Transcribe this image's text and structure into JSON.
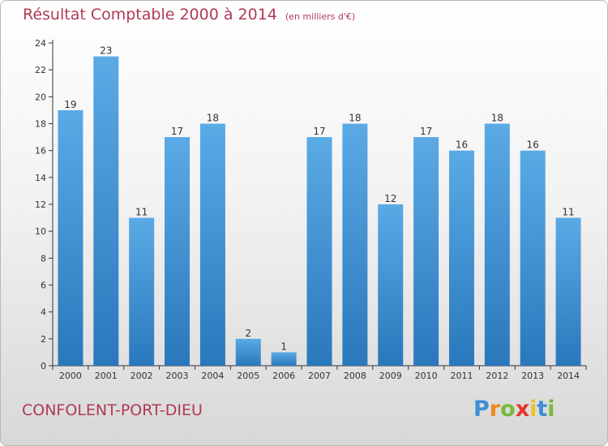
{
  "chart_data": {
    "type": "bar",
    "title": "Résultat Comptable 2000 à 2014",
    "subtitle": "(en milliers d'€)",
    "categories": [
      "2000",
      "2001",
      "2002",
      "2003",
      "2004",
      "2005",
      "2006",
      "2007",
      "2008",
      "2009",
      "2010",
      "2011",
      "2012",
      "2013",
      "2014"
    ],
    "values": [
      19,
      23,
      11,
      17,
      18,
      2,
      1,
      17,
      18,
      12,
      17,
      16,
      18,
      16,
      11
    ],
    "ylim": [
      0,
      24
    ],
    "yticks": [
      0,
      2,
      4,
      6,
      8,
      10,
      12,
      14,
      16,
      18,
      20,
      22,
      24
    ],
    "grid": false,
    "bar_colors": [
      "#5aaae6",
      "#2a78bc"
    ]
  },
  "commune": "CONFOLENT-PORT-DIEU",
  "logo": {
    "letters": [
      "P",
      "r",
      "o",
      "x",
      "i",
      "t",
      "i"
    ],
    "colors": [
      "#3d8fd6",
      "#f08a1c",
      "#7ab83a",
      "#e0382b",
      "#f0c020",
      "#3d8fd6",
      "#7ab83a"
    ]
  }
}
